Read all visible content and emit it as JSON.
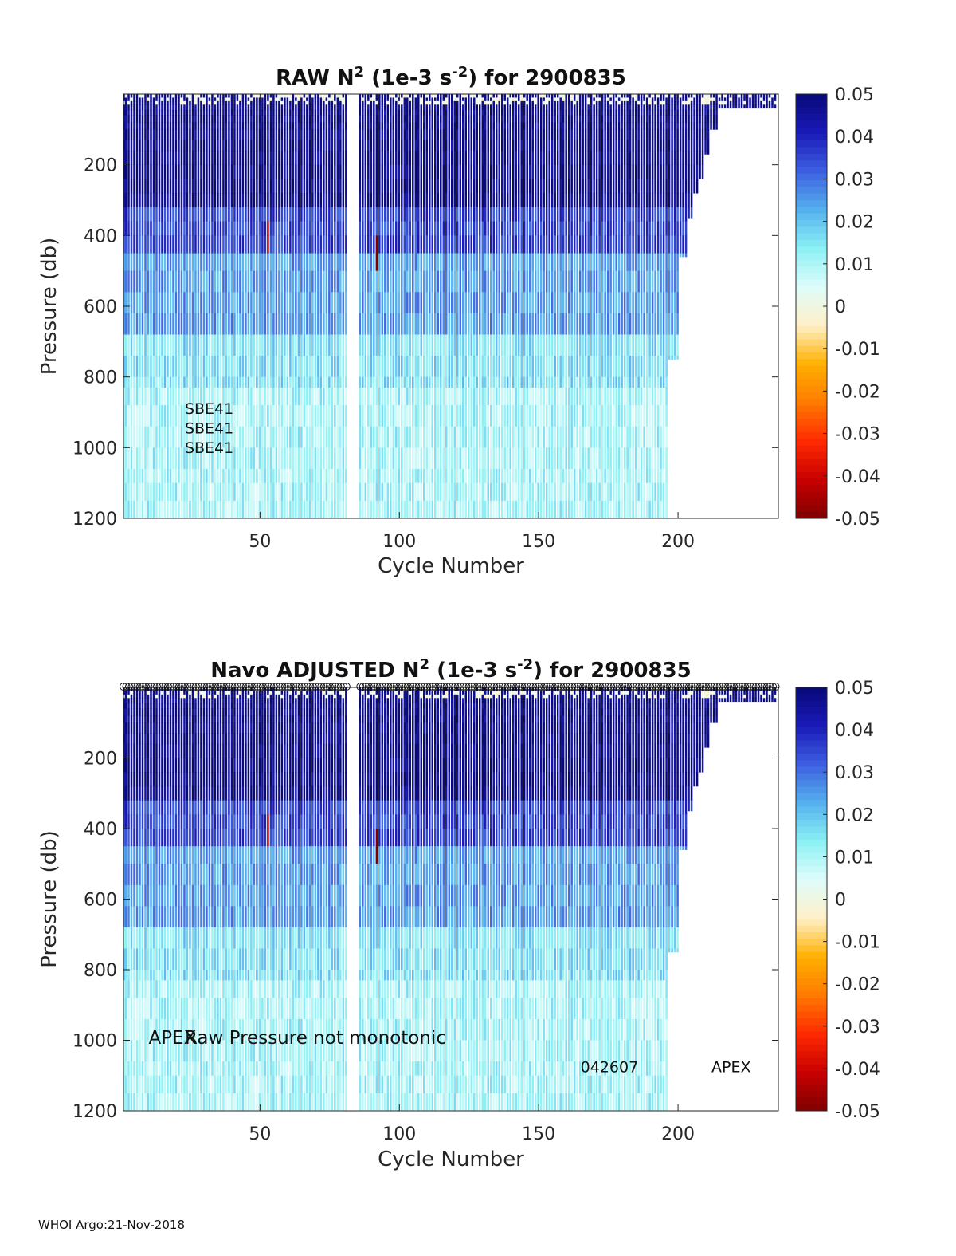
{
  "footer": "WHOI Argo:21-Nov-2018",
  "chart_data": [
    {
      "type": "heatmap",
      "title_parts": [
        "RAW N",
        "2",
        " (1e-3 s",
        "-2",
        ") for 2900835"
      ],
      "xlabel": "Cycle Number",
      "ylabel": "Pressure (db)",
      "xlim": [
        1,
        236
      ],
      "ylim": [
        0,
        1200
      ],
      "y_reversed": true,
      "xticks": [
        50,
        100,
        150,
        200
      ],
      "yticks": [
        200,
        400,
        600,
        800,
        1000,
        1200
      ],
      "colorbar": {
        "min": -0.05,
        "max": 0.05,
        "ticks": [
          "0.05",
          "0.04",
          "0.03",
          "0.02",
          "0.01",
          "0",
          "-0.01",
          "-0.02",
          "-0.03",
          "-0.04",
          "-0.05"
        ]
      },
      "annotations": [
        {
          "text": "SBE41",
          "x": 23,
          "y": 905
        },
        {
          "text": "SBE41",
          "x": 23,
          "y": 960
        },
        {
          "text": "SBE41",
          "x": 23,
          "y": 1015
        }
      ],
      "grid": false
    },
    {
      "type": "heatmap",
      "title_parts": [
        "Navo  ADJUSTED N",
        "2",
        " (1e-3 s",
        "-2",
        ") for 2900835"
      ],
      "xlabel": "Cycle Number",
      "ylabel": "Pressure (db)",
      "xlim": [
        1,
        236
      ],
      "ylim": [
        0,
        1200
      ],
      "y_reversed": true,
      "xticks": [
        50,
        100,
        150,
        200
      ],
      "yticks": [
        200,
        400,
        600,
        800,
        1000,
        1200
      ],
      "colorbar": {
        "min": -0.05,
        "max": 0.05,
        "ticks": [
          "0.05",
          "0.04",
          "0.03",
          "0.02",
          "0.01",
          "0",
          "-0.01",
          "-0.02",
          "-0.03",
          "-0.04",
          "-0.05"
        ]
      },
      "annotations": [
        {
          "text": "APEX",
          "x": 10,
          "y": 1010
        },
        {
          "text": "Raw Pressure not monotonic",
          "x": 23,
          "y": 1010
        },
        {
          "text": "042607",
          "x": 165,
          "y": 1090
        },
        {
          "text": "APEX",
          "x": 212,
          "y": 1090
        }
      ],
      "top_markers": "o",
      "grid": false
    }
  ],
  "colormap": [
    "#7f0000",
    "#c80000",
    "#ff2a00",
    "#ff7a00",
    "#ffb000",
    "#fff0c8",
    "#dffcfb",
    "#8bf1f4",
    "#55b0ee",
    "#3d5fe0",
    "#1a1ab8",
    "#08087a"
  ]
}
